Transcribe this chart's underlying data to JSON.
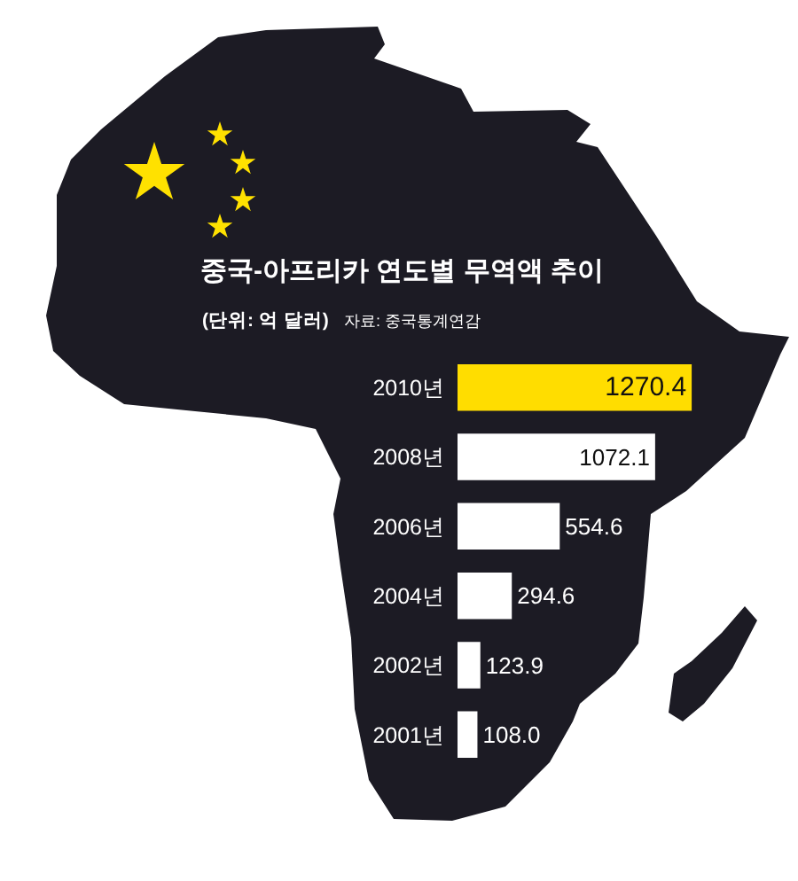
{
  "chart_data": {
    "type": "bar",
    "orientation": "horizontal",
    "title": "중국-아프리카 연도별 무역액 추이",
    "subtitle": "(단위: 억 달러)",
    "annotations": [
      "자료: 중국통계연감"
    ],
    "categories": [
      "2010년",
      "2008년",
      "2006년",
      "2004년",
      "2002년",
      "2001년"
    ],
    "values": [
      1270.4,
      1072.1,
      554.6,
      294.6,
      123.9,
      108.0
    ],
    "value_labels": [
      "1270.4",
      "1072.1",
      "554.6",
      "294.6",
      "123.9",
      "108.0"
    ],
    "colors": [
      "#ffdd00",
      "#ffffff",
      "#ffffff",
      "#ffffff",
      "#ffffff",
      "#ffffff"
    ],
    "tick_labels": "y"
  }
}
